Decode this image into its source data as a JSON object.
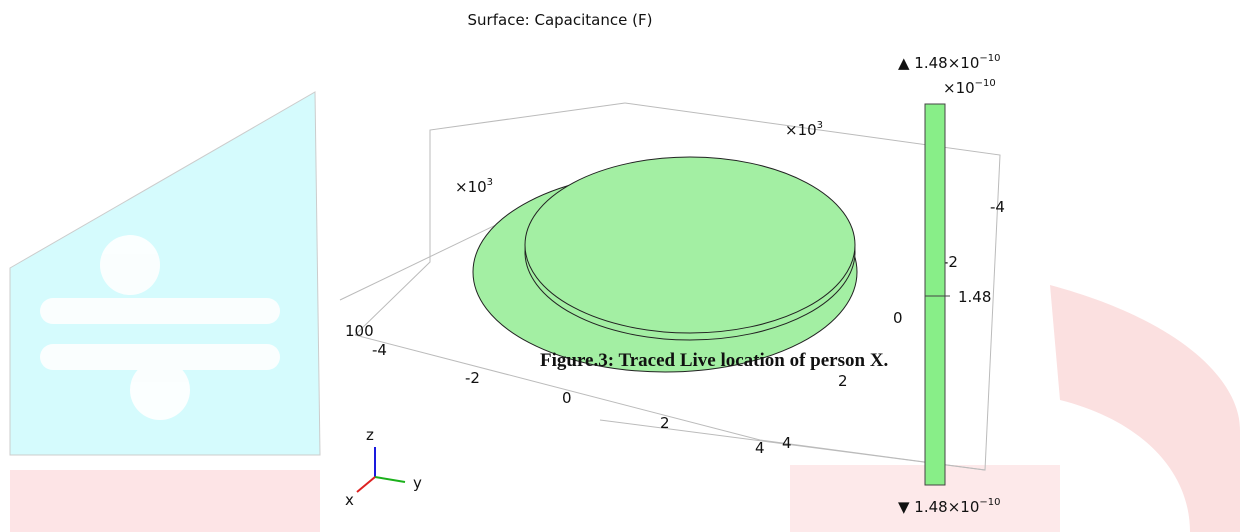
{
  "plot": {
    "title": "Surface: Capacitance (F)",
    "colorbar": {
      "max": {
        "prefix": "▲ 1.48×10",
        "exponent": "−10"
      },
      "multiplier": {
        "prefix": "×10",
        "exponent": "−10"
      },
      "tick": "1.48",
      "min": {
        "prefix": "▼ 1.48×10",
        "exponent": "−10"
      }
    },
    "axes": {
      "x_multiplier": {
        "prefix": "×10",
        "exponent": "3"
      },
      "y_multiplier": {
        "prefix": "×10",
        "exponent": "3"
      },
      "x_ticks": [
        "-4",
        "-2",
        "0",
        "2",
        "4"
      ],
      "y_ticks": [
        "-4",
        "-2",
        "0",
        "2",
        "4"
      ],
      "z_tick": "100",
      "triad": {
        "x": "x",
        "y": "y",
        "z": "z"
      }
    }
  },
  "caption": "Figure.3: Traced Live location of person X."
}
